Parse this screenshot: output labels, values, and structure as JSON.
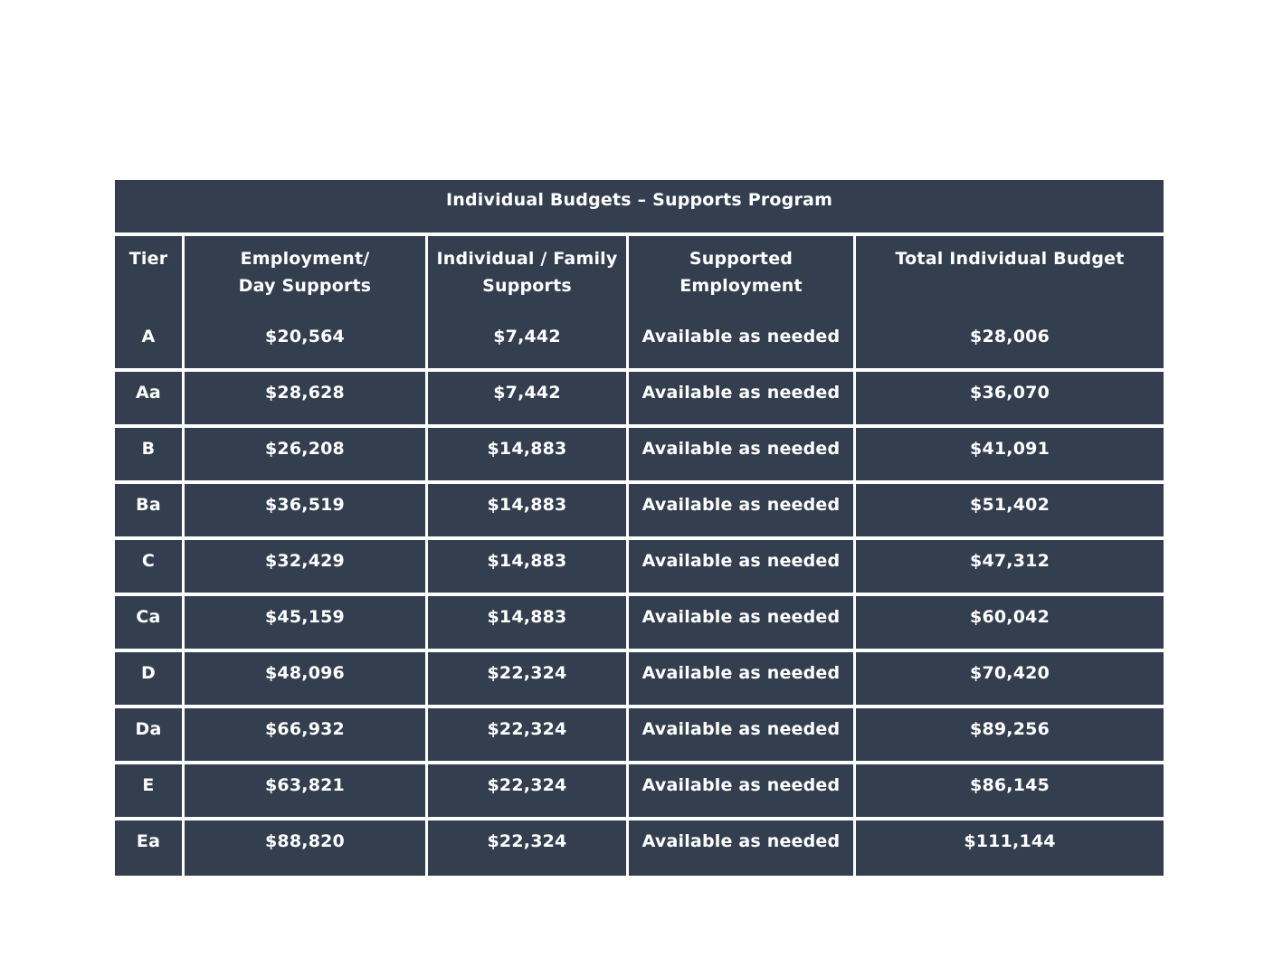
{
  "table": {
    "title": "Individual Budgets – Supports Program",
    "headers": [
      [
        "Tier"
      ],
      [
        "Employment/",
        "Day Supports"
      ],
      [
        "Individual / Family",
        "Supports"
      ],
      [
        "Supported",
        "Employment"
      ],
      [
        "Total Individual Budget"
      ]
    ],
    "rows": [
      [
        "A",
        "$20,564",
        "$7,442",
        "Available as needed",
        "$28,006"
      ],
      [
        "Aa",
        "$28,628",
        "$7,442",
        "Available as needed",
        "$36,070"
      ],
      [
        "B",
        "$26,208",
        "$14,883",
        "Available as needed",
        "$41,091"
      ],
      [
        "Ba",
        "$36,519",
        "$14,883",
        "Available as needed",
        "$51,402"
      ],
      [
        "C",
        "$32,429",
        "$14,883",
        "Available as needed",
        "$47,312"
      ],
      [
        "Ca",
        "$45,159",
        "$14,883",
        "Available as needed",
        "$60,042"
      ],
      [
        "D",
        "$48,096",
        "$22,324",
        "Available as needed",
        "$70,420"
      ],
      [
        "Da",
        "$66,932",
        "$22,324",
        "Available as needed",
        "$89,256"
      ],
      [
        "E",
        "$63,821",
        "$22,324",
        "Available as needed",
        "$86,145"
      ],
      [
        "Ea",
        "$88,820",
        "$22,324",
        "Available as needed",
        "$111,144"
      ]
    ]
  },
  "colors": {
    "cell_background": "#333f4f",
    "text": "#ffffff",
    "grid_lines": "#ffffff"
  }
}
